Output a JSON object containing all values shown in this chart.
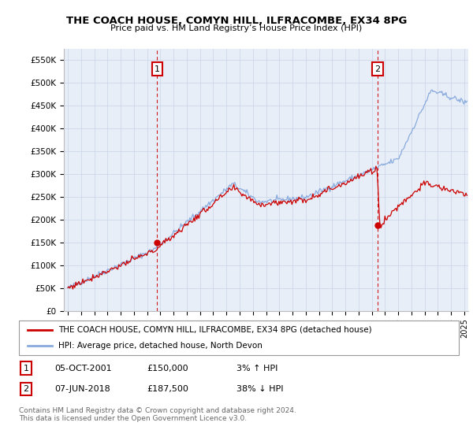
{
  "title": "THE COACH HOUSE, COMYN HILL, ILFRACOMBE, EX34 8PG",
  "subtitle": "Price paid vs. HM Land Registry’s House Price Index (HPI)",
  "ylim": [
    0,
    575000
  ],
  "yticks": [
    0,
    50000,
    100000,
    150000,
    200000,
    250000,
    300000,
    350000,
    400000,
    450000,
    500000,
    550000
  ],
  "ytick_labels": [
    "£0",
    "£50K",
    "£100K",
    "£150K",
    "£200K",
    "£250K",
    "£300K",
    "£350K",
    "£400K",
    "£450K",
    "£500K",
    "£550K"
  ],
  "xlim_start": 1994.7,
  "xlim_end": 2025.3,
  "transaction1": {
    "year": 2001.76,
    "price": 150000,
    "label": "1"
  },
  "transaction2": {
    "year": 2018.43,
    "price": 187500,
    "label": "2"
  },
  "line_color_red": "#cc0000",
  "line_color_blue": "#88aadd",
  "vline_color": "#cc0000",
  "marker_box_color": "#cc0000",
  "chart_bg_color": "#e8eef8",
  "background_color": "#ffffff",
  "grid_color": "#c8d4e8",
  "legend_line1": "THE COACH HOUSE, COMYN HILL, ILFRACOMBE, EX34 8PG (detached house)",
  "legend_line2": "HPI: Average price, detached house, North Devon",
  "footer_line1": "Contains HM Land Registry data © Crown copyright and database right 2024.",
  "footer_line2": "This data is licensed under the Open Government Licence v3.0.",
  "table_row1": [
    "1",
    "05-OCT-2001",
    "£150,000",
    "3% ↑ HPI"
  ],
  "table_row2": [
    "2",
    "07-JUN-2018",
    "£187,500",
    "38% ↓ HPI"
  ]
}
